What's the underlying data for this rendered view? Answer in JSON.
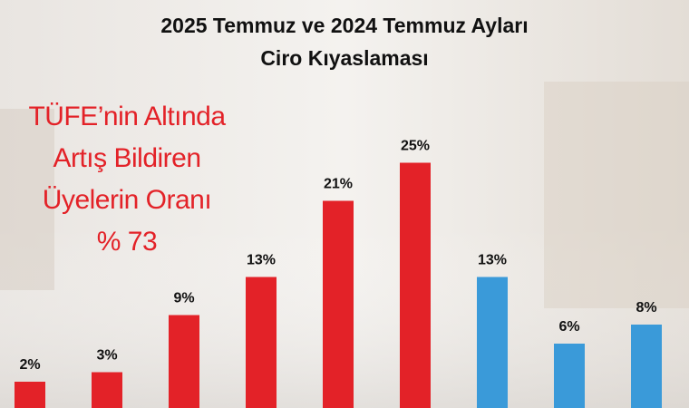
{
  "chart_data": {
    "type": "bar",
    "title": [
      "2025 Temmuz ve 2024 Temmuz Ayları",
      "Ciro Kıyaslaması"
    ],
    "annotation": [
      "TÜFE’nin Altında",
      "Artış Bildiren",
      "Üyelerin Oranı",
      "% 73"
    ],
    "categories": [
      null,
      null,
      null,
      null,
      null,
      null,
      null,
      null,
      null
    ],
    "values": [
      2,
      3,
      9,
      13,
      21,
      25,
      13,
      6,
      8
    ],
    "value_labels": [
      "2%",
      "3%",
      "9%",
      "13%",
      "21%",
      "25%",
      "13%",
      "6%",
      "8%"
    ],
    "colors": [
      "#e32228",
      "#e32228",
      "#e32228",
      "#e32228",
      "#e32228",
      "#e32228",
      "#3a9ad9",
      "#3a9ad9",
      "#3a9ad9"
    ]
  }
}
